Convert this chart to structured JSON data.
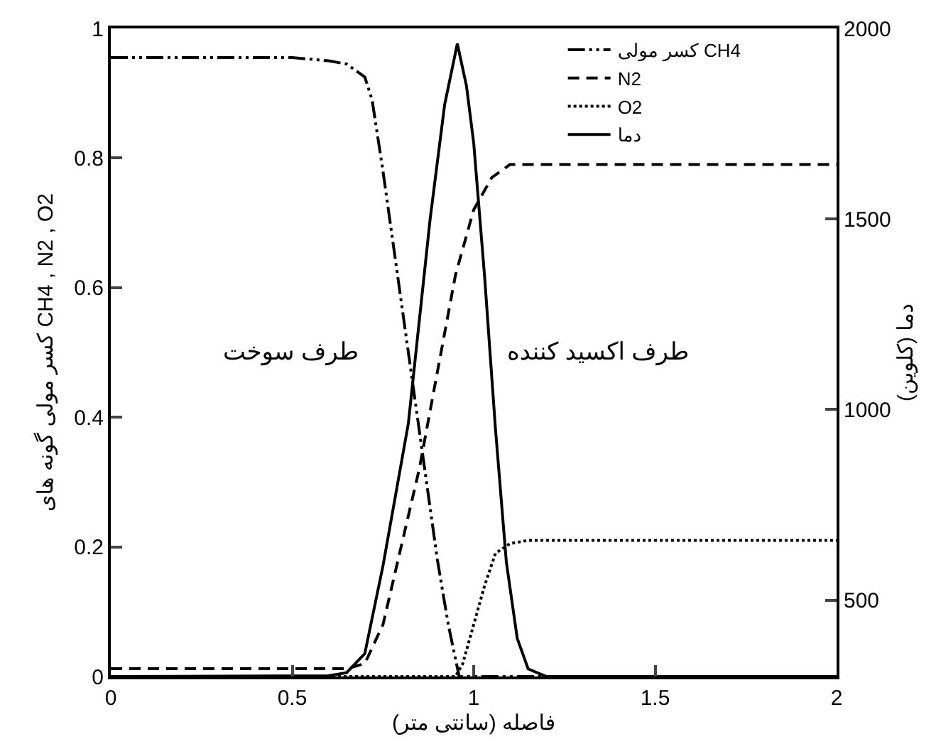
{
  "chart_data": {
    "type": "line",
    "xlabel": "فاصله (سانتی متر)",
    "ylabel": "کسر مولی گونه های CH4 , N2 , O2",
    "y2label": "دما (کلوین)",
    "xlim": [
      0,
      2
    ],
    "xticks": [
      0,
      0.5,
      1,
      1.5,
      2
    ],
    "ylim": [
      0,
      1
    ],
    "yticks": [
      0,
      0.2,
      0.4,
      0.6,
      0.8,
      1
    ],
    "y2lim": [
      300,
      2000
    ],
    "y2ticks": [
      500,
      1000,
      1500,
      2000
    ],
    "grid": false,
    "legend": "top right",
    "marker": "none",
    "annotations": [
      "طرف سوخت",
      "طرف اکسید کننده"
    ],
    "series": [
      {
        "name": "کسر مولی CH4",
        "color": "#000000",
        "line_style": "dashdot",
        "x": [
          0,
          0.5,
          0.6,
          0.65,
          0.7,
          0.72,
          0.75,
          0.8,
          0.85,
          0.9,
          0.93,
          0.96,
          2
        ],
        "values": [
          0.955,
          0.955,
          0.95,
          0.945,
          0.925,
          0.89,
          0.78,
          0.58,
          0.38,
          0.18,
          0.08,
          0,
          0
        ]
      },
      {
        "name": "N2",
        "color": "#000000",
        "line_style": "dashed",
        "x": [
          0,
          0.65,
          0.7,
          0.75,
          0.8,
          0.85,
          0.9,
          0.95,
          1.0,
          1.05,
          1.1,
          2
        ],
        "values": [
          0.012,
          0.012,
          0.02,
          0.08,
          0.2,
          0.32,
          0.47,
          0.62,
          0.72,
          0.77,
          0.79,
          0.79
        ]
      },
      {
        "name": "O2",
        "color": "#000000",
        "line_style": "dotted",
        "x": [
          0,
          0.95,
          0.97,
          1.0,
          1.03,
          1.06,
          1.1,
          1.15,
          2
        ],
        "values": [
          0,
          0,
          0.02,
          0.08,
          0.14,
          0.19,
          0.205,
          0.21,
          0.21
        ]
      },
      {
        "name": "دما",
        "color": "#000000",
        "line_style": "solid",
        "axis": "y2",
        "x": [
          0,
          0.6,
          0.65,
          0.7,
          0.75,
          0.82,
          0.88,
          0.92,
          0.955,
          0.98,
          1.0,
          1.03,
          1.06,
          1.09,
          1.12,
          1.15,
          1.2,
          2
        ],
        "values": [
          300,
          302,
          310,
          360,
          590,
          964,
          1500,
          1800,
          1960,
          1850,
          1700,
          1350,
          950,
          600,
          400,
          320,
          300,
          300
        ]
      }
    ]
  }
}
